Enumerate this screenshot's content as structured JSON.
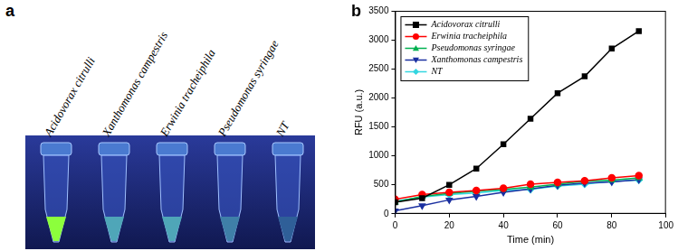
{
  "panel_labels": [
    "a",
    "b"
  ],
  "tubes": {
    "labels": [
      "Acidovorax citrulli",
      "Xanthomonas campestris",
      "Erwinia tracheiphila",
      "Pseudomonas syringae",
      "NT"
    ],
    "colors": [
      "#8cff3c",
      "#4fa6b8",
      "#4fa6b8",
      "#3f7fa8",
      "#2f5f98"
    ]
  },
  "chart_data": {
    "type": "line",
    "x_label": "Time (min)",
    "y_label": "RFU (a.u.)",
    "x": [
      0,
      10,
      20,
      30,
      40,
      50,
      60,
      70,
      80,
      90
    ],
    "series": [
      {
        "name": "Acidovorax citrulli",
        "color": "#000000",
        "marker": "square",
        "values": [
          200,
          270,
          500,
          780,
          1200,
          1640,
          2080,
          2370,
          2850,
          3150
        ]
      },
      {
        "name": "Erwinia tracheiphila",
        "color": "#ff0000",
        "marker": "circle",
        "values": [
          250,
          330,
          370,
          400,
          440,
          510,
          540,
          570,
          620,
          660
        ]
      },
      {
        "name": "Pseudomonas syringae",
        "color": "#00b050",
        "marker": "triangle-up",
        "values": [
          200,
          300,
          350,
          390,
          420,
          460,
          510,
          560,
          580,
          620
        ]
      },
      {
        "name": "Xanthomonas campestris",
        "color": "#1a2fa0",
        "marker": "triangle-down",
        "values": [
          50,
          140,
          240,
          300,
          370,
          430,
          490,
          530,
          550,
          590
        ]
      },
      {
        "name": "NT",
        "color": "#33d6e0",
        "marker": "diamond",
        "values": [
          220,
          290,
          330,
          360,
          400,
          420,
          480,
          510,
          560,
          580
        ]
      }
    ],
    "xlim": [
      0,
      100
    ],
    "xticks": [
      0,
      20,
      40,
      60,
      80,
      100
    ],
    "ylim": [
      0,
      3500
    ],
    "yticks": [
      0,
      500,
      1000,
      1500,
      2000,
      2500,
      3000,
      3500
    ],
    "grid": false,
    "legend": "upper left"
  }
}
